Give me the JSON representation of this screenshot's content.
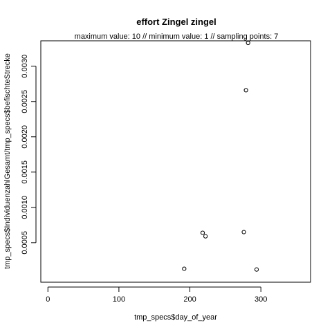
{
  "chart_data": {
    "type": "scatter",
    "title": "effort Zingel zingel",
    "subtitle": "maximum value: 10  //  minimum value: 1  // sampling points: 7",
    "xlabel": "tmp_specs$day_of_year",
    "ylabel": "tmp_specs$IndividuenzahlGesamt/tmp_specs$befischteStrecke",
    "xlim": [
      -10,
      370
    ],
    "ylim": [
      -6e-05,
      0.00336
    ],
    "x_ticks": [
      0,
      100,
      200,
      300
    ],
    "x_tick_labels": [
      "0",
      "100",
      "200",
      "300"
    ],
    "y_ticks": [
      0.0005,
      0.001,
      0.0015,
      0.002,
      0.0025,
      0.003
    ],
    "y_tick_labels": [
      "0.0005",
      "0.0010",
      "0.0015",
      "0.0020",
      "0.0025",
      "0.0030"
    ],
    "grid": false,
    "legend": "none",
    "series": [
      {
        "x": [
          192,
          218,
          222,
          276,
          279,
          282,
          294
        ],
        "y": [
          0.00013,
          0.00064,
          0.00059,
          0.00065,
          0.00266,
          0.00333,
          0.00012
        ]
      }
    ]
  }
}
